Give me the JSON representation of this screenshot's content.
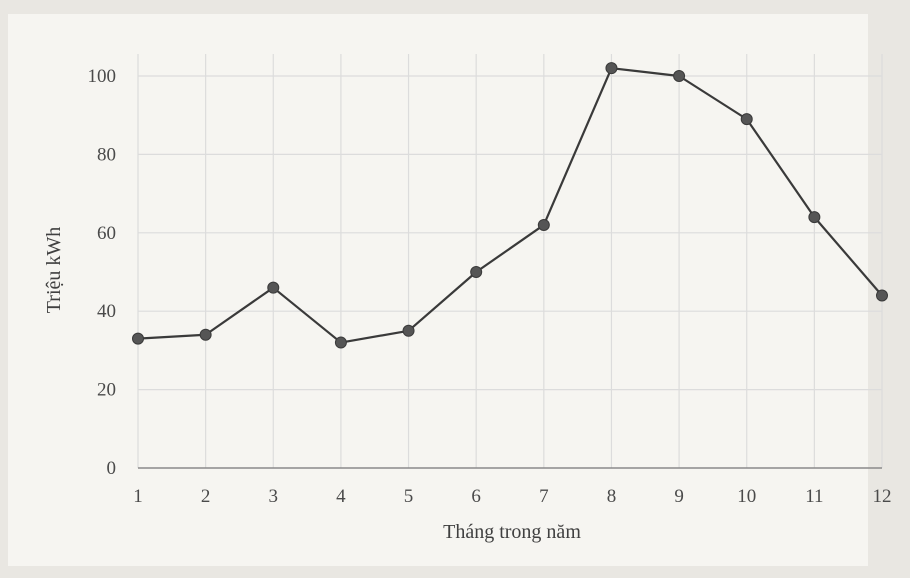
{
  "chart_data": {
    "type": "line",
    "title": "",
    "xlabel": "Tháng trong năm",
    "ylabel": "Triệu kWh",
    "categories": [
      "1",
      "2",
      "3",
      "4",
      "5",
      "6",
      "7",
      "8",
      "9",
      "10",
      "11",
      "12"
    ],
    "series": [
      {
        "values": [
          33,
          34,
          46,
          32,
          35,
          50,
          62,
          102,
          100,
          89,
          64,
          44
        ]
      }
    ],
    "ylim": [
      0,
      100
    ],
    "yticks": [
      "0",
      "20",
      "40",
      "60",
      "80",
      "100"
    ],
    "grid": true,
    "legend": "none",
    "colors": {
      "line": "#3a3a3a",
      "marker": "#555555",
      "grid": "#dcdcdc",
      "axis": "#8a8a8a"
    }
  }
}
